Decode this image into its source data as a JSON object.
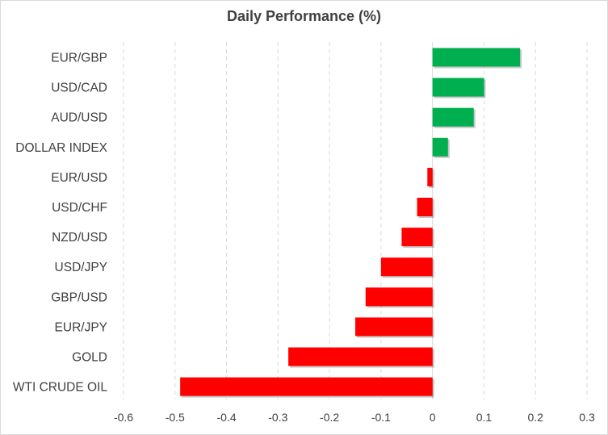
{
  "chart_data": {
    "type": "bar",
    "orientation": "horizontal",
    "title": "Daily Performance (%)",
    "categories": [
      "EUR/GBP",
      "USD/CAD",
      "AUD/USD",
      "DOLLAR INDEX",
      "EUR/USD",
      "USD/CHF",
      "NZD/USD",
      "USD/JPY",
      "GBP/USD",
      "EUR/JPY",
      "GOLD",
      "WTI CRUDE OIL"
    ],
    "values": [
      0.17,
      0.1,
      0.08,
      0.03,
      -0.01,
      -0.03,
      -0.06,
      -0.1,
      -0.13,
      -0.15,
      -0.28,
      -0.49
    ],
    "xlim": [
      -0.6,
      0.3
    ],
    "xticks": [
      -0.6,
      -0.5,
      -0.4,
      -0.3,
      -0.2,
      -0.1,
      0,
      0.1,
      0.2,
      0.3
    ],
    "xlabel": "",
    "ylabel": "",
    "grid": "vertical dashed",
    "legend": "none",
    "colors": {
      "positive": "#00b050",
      "negative": "#ff0000",
      "grid": "#d9d9d9",
      "text": "#404040"
    }
  }
}
